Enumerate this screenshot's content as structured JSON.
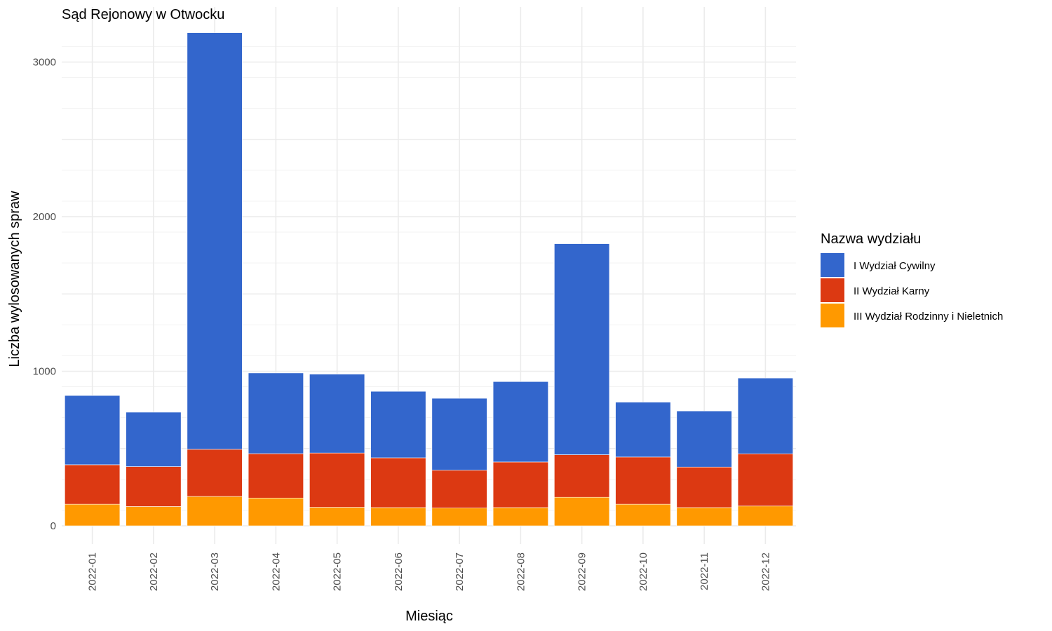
{
  "chart_data": {
    "type": "bar",
    "stacked": true,
    "title": "Sąd Rejonowy w Otwocku",
    "xlabel": "Miesiąc",
    "ylabel": "Liczba wylosowanych spraw",
    "ylim": [
      0,
      3300
    ],
    "yticks": [
      0,
      1000,
      2000,
      3000
    ],
    "grid": true,
    "legend": {
      "title": "Nazwa wydziału",
      "position": "right"
    },
    "categories": [
      "2022-01",
      "2022-02",
      "2022-03",
      "2022-04",
      "2022-05",
      "2022-06",
      "2022-07",
      "2022-08",
      "2022-09",
      "2022-10",
      "2022-11",
      "2022-12"
    ],
    "series": [
      {
        "name": "III Wydział Rodzinny i Nieletnich",
        "color": "#FF9900",
        "values": [
          140,
          125,
          190,
          180,
          120,
          118,
          115,
          118,
          185,
          140,
          118,
          128
        ]
      },
      {
        "name": "II Wydział Karny",
        "color": "#DC3912",
        "values": [
          255,
          258,
          305,
          287,
          351,
          322,
          245,
          295,
          275,
          305,
          262,
          338
        ]
      },
      {
        "name": "I Wydział Cywilny",
        "color": "#3366CC",
        "values": [
          448,
          352,
          2695,
          522,
          510,
          430,
          465,
          520,
          1365,
          355,
          363,
          490
        ]
      }
    ]
  }
}
